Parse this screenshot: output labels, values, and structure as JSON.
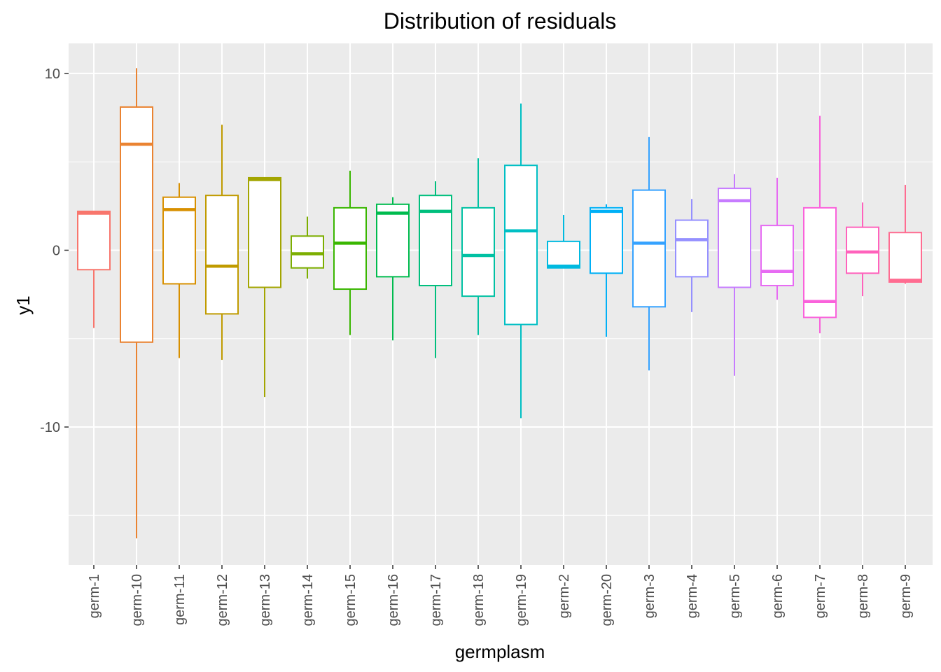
{
  "chart_data": {
    "type": "boxplot",
    "title": "Distribution of residuals",
    "xlabel": "germplasm",
    "ylabel": "y1",
    "ylim": [
      -17.8,
      11.7
    ],
    "yticks": [
      10,
      0,
      -10
    ],
    "ytick_labels": [
      "10",
      "0",
      "-10"
    ],
    "grid": true,
    "legend": "none",
    "background": "#ebebeb",
    "categories": [
      "germ-1",
      "germ-10",
      "germ-11",
      "germ-12",
      "germ-13",
      "germ-14",
      "germ-15",
      "germ-16",
      "germ-17",
      "germ-18",
      "germ-19",
      "germ-2",
      "germ-20",
      "germ-3",
      "germ-4",
      "germ-5",
      "germ-6",
      "germ-7",
      "germ-8",
      "germ-9"
    ],
    "boxes": [
      {
        "category": "germ-1",
        "color": "#F8766D",
        "lower_whisker": -4.4,
        "q1": -1.1,
        "median": 2.1,
        "q3": 2.2,
        "upper_whisker": 2.2
      },
      {
        "category": "germ-10",
        "color": "#EA8331",
        "lower_whisker": -16.3,
        "q1": -5.2,
        "median": 6.0,
        "q3": 8.1,
        "upper_whisker": 10.3
      },
      {
        "category": "germ-11",
        "color": "#D89000",
        "lower_whisker": -6.1,
        "q1": -1.9,
        "median": 2.3,
        "q3": 3.0,
        "upper_whisker": 3.8
      },
      {
        "category": "germ-12",
        "color": "#C09B00",
        "lower_whisker": -6.2,
        "q1": -3.6,
        "median": -0.9,
        "q3": 3.1,
        "upper_whisker": 7.1
      },
      {
        "category": "germ-13",
        "color": "#A3A500",
        "lower_whisker": -8.3,
        "q1": -2.1,
        "median": 4.0,
        "q3": 4.1,
        "upper_whisker": 4.1
      },
      {
        "category": "germ-14",
        "color": "#7CAE00",
        "lower_whisker": -1.6,
        "q1": -1.0,
        "median": -0.2,
        "q3": 0.8,
        "upper_whisker": 1.9
      },
      {
        "category": "germ-15",
        "color": "#39B600",
        "lower_whisker": -4.8,
        "q1": -2.2,
        "median": 0.4,
        "q3": 2.4,
        "upper_whisker": 4.5
      },
      {
        "category": "germ-16",
        "color": "#00BB4E",
        "lower_whisker": -5.1,
        "q1": -1.5,
        "median": 2.1,
        "q3": 2.6,
        "upper_whisker": 3.0
      },
      {
        "category": "germ-17",
        "color": "#00BF7D",
        "lower_whisker": -6.1,
        "q1": -2.0,
        "median": 2.2,
        "q3": 3.1,
        "upper_whisker": 3.9
      },
      {
        "category": "germ-18",
        "color": "#00C1A3",
        "lower_whisker": -4.8,
        "q1": -2.6,
        "median": -0.3,
        "q3": 2.4,
        "upper_whisker": 5.2
      },
      {
        "category": "germ-19",
        "color": "#00BFC4",
        "lower_whisker": -9.5,
        "q1": -4.2,
        "median": 1.1,
        "q3": 4.8,
        "upper_whisker": 8.3
      },
      {
        "category": "germ-2",
        "color": "#00BAE0",
        "lower_whisker": -1.0,
        "q1": -1.0,
        "median": -0.9,
        "q3": 0.5,
        "upper_whisker": 2.0
      },
      {
        "category": "germ-20",
        "color": "#00B0F6",
        "lower_whisker": -4.9,
        "q1": -1.3,
        "median": 2.2,
        "q3": 2.4,
        "upper_whisker": 2.6
      },
      {
        "category": "germ-3",
        "color": "#35A2FF",
        "lower_whisker": -6.8,
        "q1": -3.2,
        "median": 0.4,
        "q3": 3.4,
        "upper_whisker": 6.4
      },
      {
        "category": "germ-4",
        "color": "#9590FF",
        "lower_whisker": -3.5,
        "q1": -1.5,
        "median": 0.6,
        "q3": 1.7,
        "upper_whisker": 2.9
      },
      {
        "category": "germ-5",
        "color": "#C77CFF",
        "lower_whisker": -7.1,
        "q1": -2.1,
        "median": 2.8,
        "q3": 3.5,
        "upper_whisker": 4.3
      },
      {
        "category": "germ-6",
        "color": "#E76BF3",
        "lower_whisker": -2.8,
        "q1": -2.0,
        "median": -1.2,
        "q3": 1.4,
        "upper_whisker": 4.1
      },
      {
        "category": "germ-7",
        "color": "#FA62DB",
        "lower_whisker": -4.7,
        "q1": -3.8,
        "median": -2.9,
        "q3": 2.4,
        "upper_whisker": 7.6
      },
      {
        "category": "germ-8",
        "color": "#FF62BC",
        "lower_whisker": -2.6,
        "q1": -1.3,
        "median": -0.1,
        "q3": 1.3,
        "upper_whisker": 2.7
      },
      {
        "category": "germ-9",
        "color": "#FF6C91",
        "lower_whisker": -1.9,
        "q1": -1.8,
        "median": -1.7,
        "q3": 1.0,
        "upper_whisker": 3.7
      }
    ]
  }
}
